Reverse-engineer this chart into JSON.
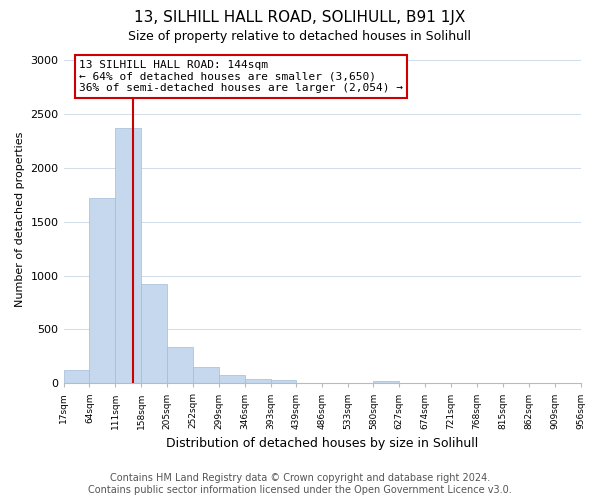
{
  "title": "13, SILHILL HALL ROAD, SOLIHULL, B91 1JX",
  "subtitle": "Size of property relative to detached houses in Solihull",
  "xlabel": "Distribution of detached houses by size in Solihull",
  "ylabel": "Number of detached properties",
  "bar_edges": [
    17,
    64,
    111,
    158,
    205,
    252,
    299,
    346,
    393,
    439,
    486,
    533,
    580,
    627,
    674,
    721,
    768,
    815,
    862,
    909,
    956
  ],
  "bar_heights": [
    120,
    1720,
    2370,
    920,
    340,
    150,
    75,
    40,
    30,
    0,
    0,
    0,
    20,
    0,
    0,
    0,
    0,
    0,
    0,
    0
  ],
  "bar_color": "#c5d8ed",
  "bar_edge_color": "#a0bcd8",
  "property_line_x": 144,
  "property_line_color": "#cc0000",
  "ylim": [
    0,
    3050
  ],
  "annotation_line1": "13 SILHILL HALL ROAD: 144sqm",
  "annotation_line2": "← 64% of detached houses are smaller (3,650)",
  "annotation_line3": "36% of semi-detached houses are larger (2,054) →",
  "footer_line1": "Contains HM Land Registry data © Crown copyright and database right 2024.",
  "footer_line2": "Contains public sector information licensed under the Open Government Licence v3.0.",
  "bg_color": "#ffffff",
  "grid_color": "#d0dce8",
  "title_fontsize": 11,
  "subtitle_fontsize": 9,
  "xlabel_fontsize": 9,
  "ylabel_fontsize": 8,
  "footer_fontsize": 7,
  "annot_fontsize": 8
}
